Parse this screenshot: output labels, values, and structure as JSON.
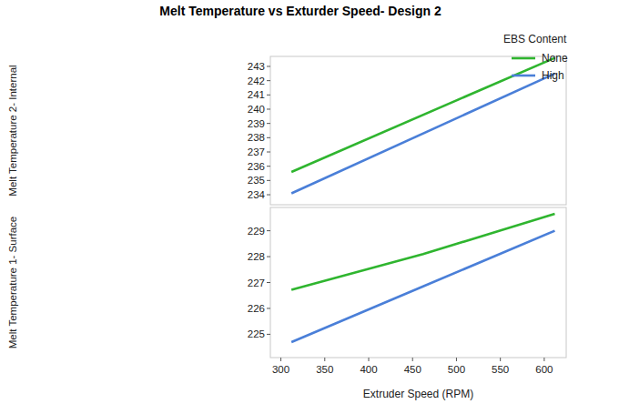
{
  "chart_data": [
    {
      "type": "line",
      "title": "Melt Temperature vs Exturder Speed- Design 2",
      "ylabel": "Melt Temperature 2- Internal",
      "legend": "right",
      "legend_title": "EBS Content",
      "tick_labels": "y",
      "grid": false,
      "x": [
        312,
        612
      ],
      "series": [
        {
          "name": "None",
          "color": "#2fb52f",
          "values": [
            235.6,
            243.6
          ]
        },
        {
          "name": "High",
          "color": "#4a7fd8",
          "values": [
            234.1,
            242.5
          ]
        }
      ],
      "xlim": [
        288,
        625
      ],
      "ylim": [
        233.3,
        243.7
      ],
      "yticks": [
        234,
        235,
        236,
        237,
        238,
        239,
        240,
        241,
        242,
        243
      ]
    },
    {
      "type": "line",
      "ylabel": "Melt Temperature 1- Surface",
      "xlabel": "Extruder Speed (RPM)",
      "grid": false,
      "x": [
        312,
        462,
        612
      ],
      "series": [
        {
          "name": "None",
          "color": "#2fb52f",
          "values": [
            226.72,
            228.1,
            229.65
          ]
        },
        {
          "name": "High",
          "color": "#4a7fd8",
          "values": [
            224.7,
            226.85,
            229.0
          ]
        }
      ],
      "xlim": [
        288,
        625
      ],
      "ylim": [
        224.1,
        229.9
      ],
      "xticks": [
        300,
        350,
        400,
        450,
        500,
        550,
        600
      ],
      "yticks": [
        225,
        226,
        227,
        228,
        229
      ]
    }
  ]
}
